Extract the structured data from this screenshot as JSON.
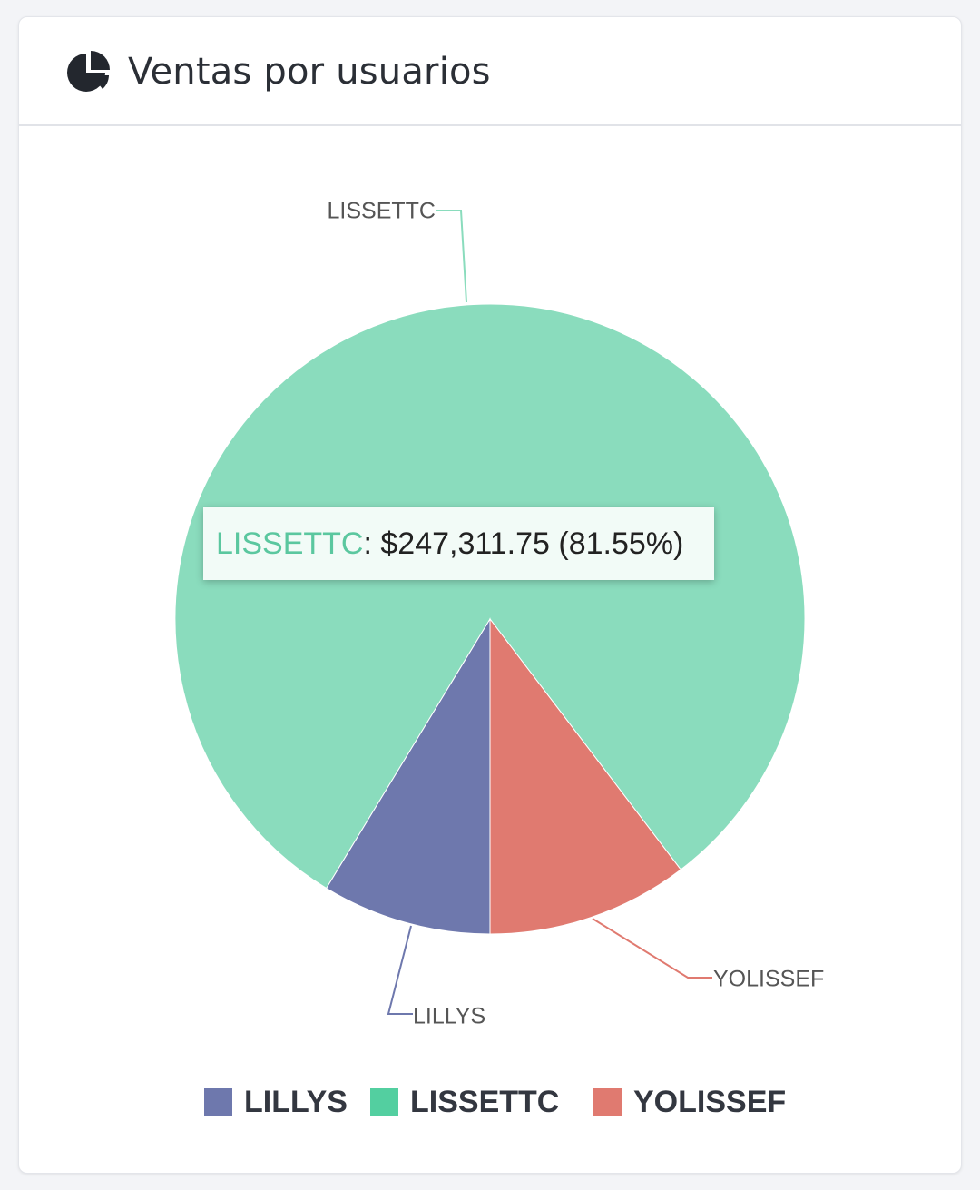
{
  "card": {
    "title": "Ventas por usuarios",
    "icon": "pie-chart-icon"
  },
  "tooltip": {
    "label": "LISSETTC",
    "value_text": ": $247,311.75 (81.55%)"
  },
  "chart_data": {
    "type": "pie",
    "title": "Ventas por usuarios",
    "slices": [
      {
        "name": "LISSETTC",
        "value": 247311.75,
        "percent": 81.55,
        "color": "#8adcbd"
      },
      {
        "name": "YOLISSEF",
        "value_percent_estimate": 10.5,
        "color": "#e07a70"
      },
      {
        "name": "LILLYS",
        "value_percent_estimate": 7.95,
        "color": "#6e78ad"
      }
    ],
    "legend": [
      {
        "name": "LILLYS",
        "color": "#6e78ad"
      },
      {
        "name": "LISSETTC",
        "color": "#53cfa0"
      },
      {
        "name": "YOLISSEF",
        "color": "#e07a70"
      }
    ],
    "legend_position": "bottom",
    "label_color": "#555555"
  }
}
